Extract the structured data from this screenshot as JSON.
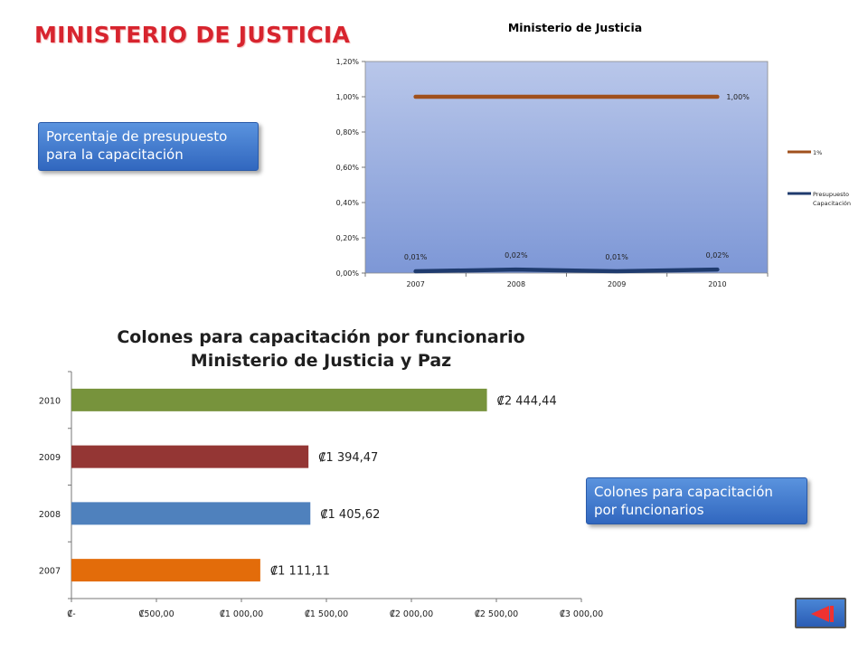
{
  "page": {
    "title": "MINISTERIO DE JUSTICIA",
    "callout_budget": "Porcentaje de presupuesto para la capacitación",
    "callout_colones": "Colones para capacitación por funcionarios"
  },
  "colors": {
    "title_red": "#d7242e",
    "series_1pct": "#a0501c",
    "series_budget": "#1f3b6e",
    "bar_2007": "#e36c0a",
    "bar_2008": "#4f81bd",
    "bar_2009": "#943634",
    "bar_2010": "#77933c"
  },
  "icons": {
    "back_button": "back-arrow-icon"
  },
  "chart_data": [
    {
      "type": "line",
      "title": "Ministerio de Justicia",
      "categories": [
        "2007",
        "2008",
        "2009",
        "2010"
      ],
      "y_ticks": [
        "0,00%",
        "0,20%",
        "0,40%",
        "0,60%",
        "0,80%",
        "1,00%",
        "1,20%"
      ],
      "ylim": [
        0,
        1.2
      ],
      "series": [
        {
          "name": "1%",
          "values": [
            1.0,
            1.0,
            1.0,
            1.0
          ],
          "labels": [
            "",
            "",
            "",
            "1,00%"
          ],
          "color": "#a0501c"
        },
        {
          "name": "Presupuesto Capacitación",
          "values": [
            0.01,
            0.02,
            0.01,
            0.02
          ],
          "labels": [
            "0,01%",
            "0,02%",
            "0,01%",
            "0,02%"
          ],
          "color": "#1f3b6e"
        }
      ],
      "legend": "right",
      "plot_background": "blue gradient"
    },
    {
      "type": "bar",
      "orientation": "horizontal",
      "title": "Colones para capacitación por funcionario",
      "subtitle": "Ministerio de Justicia y Paz",
      "categories": [
        "2007",
        "2008",
        "2009",
        "2010"
      ],
      "values": [
        1111.11,
        1405.62,
        1394.47,
        2444.44
      ],
      "value_labels": [
        "₡1 111,11",
        "₡1 405,62",
        "₡1 394,47",
        "₡2 444,44"
      ],
      "colors": [
        "#e36c0a",
        "#4f81bd",
        "#943634",
        "#77933c"
      ],
      "x_ticks": [
        "₡-",
        "₡500,00",
        "₡1 000,00",
        "₡1 500,00",
        "₡2 000,00",
        "₡2 500,00",
        "₡3 000,00"
      ],
      "xlim": [
        0,
        3000
      ]
    }
  ]
}
